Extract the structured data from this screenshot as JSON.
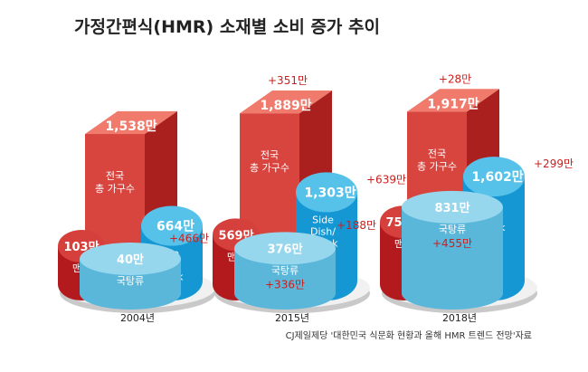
{
  "chart_data": {
    "type": "bar",
    "title": "가정간편식(HMR) 소재별 소비 증가 추이",
    "source": "CJ제일제당 '대한민국 식문화 현황과 올해 HMR 트렌드 전망'자료",
    "years": [
      {
        "year": "2004년",
        "total": {
          "name": "전국 총 가구수",
          "label_line1": "전국",
          "label_line2": "총 가구수",
          "value": "1,538만",
          "value_num": 1538,
          "change": ""
        },
        "rice": {
          "name": "맨밥",
          "value": "103만",
          "value_num": 103,
          "change": ""
        },
        "side": {
          "name": "Side Dish/ Snack",
          "label_lines": [
            "Side",
            "Dish/",
            "Snack"
          ],
          "value": "664만",
          "value_num": 664,
          "change": ""
        },
        "soup": {
          "name": "국탕류",
          "value": "40만",
          "value_num": 40,
          "change": ""
        }
      },
      {
        "year": "2015년",
        "total": {
          "name": "전국 총 가구수",
          "label_line1": "전국",
          "label_line2": "총 가구수",
          "value": "1,889만",
          "value_num": 1889,
          "change": "+351만"
        },
        "rice": {
          "name": "맨밥",
          "value": "569만",
          "value_num": 569,
          "change": "+466만"
        },
        "side": {
          "name": "Side Dish/ Snack",
          "label_lines": [
            "Side",
            "Dish/",
            "Snack"
          ],
          "value": "1,303만",
          "value_num": 1303,
          "change": "+639만"
        },
        "soup": {
          "name": "국탕류",
          "value": "376만",
          "value_num": 376,
          "change": "+336만"
        }
      },
      {
        "year": "2018년",
        "total": {
          "name": "전국 총 가구수",
          "label_line1": "전국",
          "label_line2": "총 가구수",
          "value": "1,917만",
          "value_num": 1917,
          "change": "+28만"
        },
        "rice": {
          "name": "맨밥",
          "value": "757만",
          "value_num": 757,
          "change": "+188만"
        },
        "side": {
          "name": "Side Dish/ Snack",
          "label_lines": [
            "Side",
            "Dish/",
            "Snack"
          ],
          "value": "1,602만",
          "value_num": 1602,
          "change": "+299만"
        },
        "soup": {
          "name": "국탕류",
          "value": "831만",
          "value_num": 831,
          "change": "+455만"
        }
      }
    ],
    "colors": {
      "total_front": "#d8443e",
      "total_side": "#a9201f",
      "total_top": "#f07a6c",
      "rice_front": "#b31a1d",
      "rice_side": "#8e1517",
      "rice_top": "#d6403c",
      "side_front": "#1597d4",
      "side_dark": "#0d6fa5",
      "side_top": "#56c2ea",
      "soup_front": "#5bb7da",
      "soup_top": "#96d7ee",
      "change_text": "#c9201f",
      "platform_top": "#f1f1f1",
      "platform_side": "#c9c9c9"
    }
  }
}
